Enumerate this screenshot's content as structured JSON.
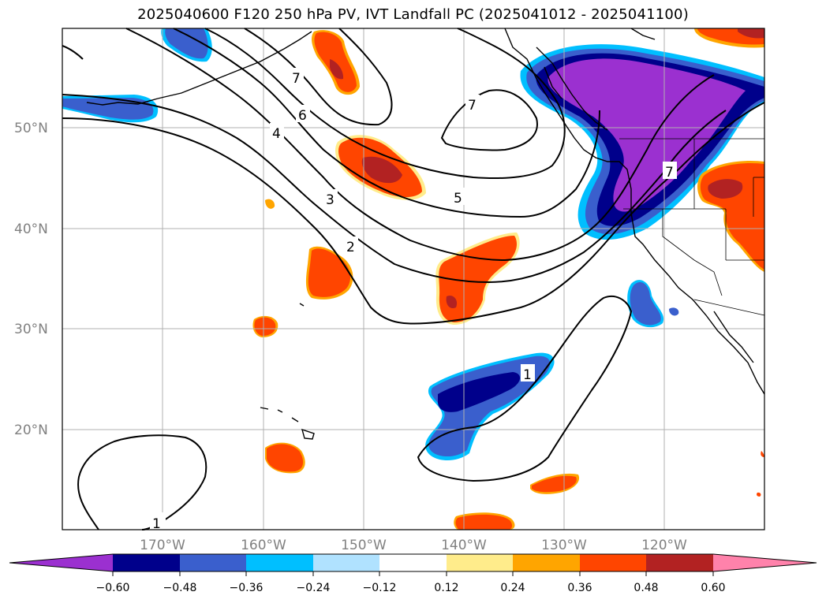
{
  "title": "2025040600 F120 250 hPa PV, IVT Landfall PC (2025041012 - 2025041100)",
  "lat_labels": [
    "50°N",
    "40°N",
    "30°N",
    "20°N"
  ],
  "lon_labels": [
    "170°W",
    "160°W",
    "150°W",
    "140°W",
    "130°W",
    "120°W"
  ],
  "colorbar": {
    "ticks": [
      "−0.60",
      "−0.48",
      "−0.36",
      "−0.24",
      "−0.12",
      "0.12",
      "0.24",
      "0.36",
      "0.48",
      "0.60"
    ],
    "colors": [
      "#9b30d0",
      "#00008b",
      "#3a5fcd",
      "#00bfff",
      "#b0e2ff",
      "#ffffff",
      "#ffec8b",
      "#ffa500",
      "#ff4500",
      "#b22222",
      "#ff82ab"
    ]
  },
  "contour_labels": [
    "1",
    "1",
    "2",
    "3",
    "4",
    "5",
    "6",
    "7",
    "7",
    "7"
  ],
  "colors": {
    "land_outline": "#000000",
    "grid": "#b0b0b0",
    "contour": "#000000"
  }
}
